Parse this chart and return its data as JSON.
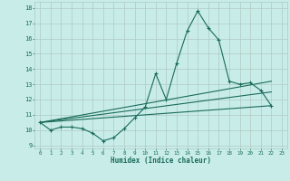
{
  "xlabel": "Humidex (Indice chaleur)",
  "ylabel": "",
  "xlim": [
    -0.5,
    23.5
  ],
  "ylim": [
    8.8,
    18.4
  ],
  "yticks": [
    9,
    10,
    11,
    12,
    13,
    14,
    15,
    16,
    17,
    18
  ],
  "xticks": [
    0,
    1,
    2,
    3,
    4,
    5,
    6,
    7,
    8,
    9,
    10,
    11,
    12,
    13,
    14,
    15,
    16,
    17,
    18,
    19,
    20,
    21,
    22,
    23
  ],
  "bg_color": "#c8ede8",
  "grid_color": "#b0c8c4",
  "line_color": "#1a6b5a",
  "line1_y": [
    10.5,
    10.0,
    10.2,
    10.2,
    10.1,
    9.8,
    9.3,
    9.5,
    10.1,
    10.8,
    11.5,
    13.7,
    12.0,
    14.4,
    16.5,
    17.8,
    16.7,
    15.9,
    13.2,
    13.0,
    13.1,
    12.6,
    11.6
  ],
  "diag_lines": [
    {
      "x": [
        0,
        22
      ],
      "y": [
        10.5,
        11.6
      ]
    },
    {
      "x": [
        0,
        22
      ],
      "y": [
        10.5,
        12.5
      ]
    },
    {
      "x": [
        0,
        22
      ],
      "y": [
        10.5,
        13.2
      ]
    }
  ]
}
